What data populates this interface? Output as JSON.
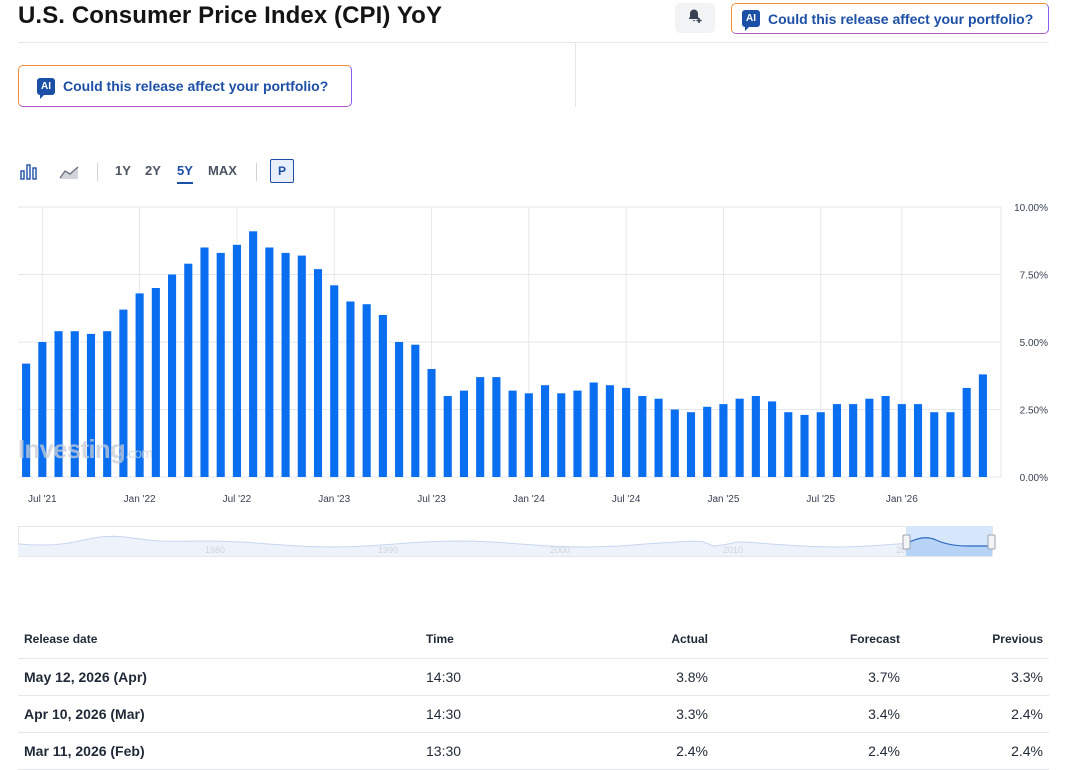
{
  "page": {
    "title": "U.S. Consumer Price Index (CPI) YoY"
  },
  "ai_prompt": {
    "label": "Could this release affect your portfolio?",
    "badge": "AI"
  },
  "toolbar": {
    "ranges": [
      "1Y",
      "2Y",
      "5Y",
      "MAX"
    ],
    "active_range": "5Y",
    "p_label": "P",
    "icons": [
      "bar-chart-icon",
      "area-chart-icon"
    ]
  },
  "colors": {
    "bar": "#0a6ef0",
    "accent": "#1c4fa6",
    "positive": "#0d8a3a",
    "negative": "#d32f2f"
  },
  "watermark": {
    "text": "Investing",
    "suffix": ".com"
  },
  "chart_data": {
    "type": "bar",
    "series": [
      {
        "values": [
          4.2,
          5.0,
          5.4,
          5.4,
          5.3,
          5.4,
          6.2,
          6.8,
          7.0,
          7.5,
          7.9,
          8.5,
          8.3,
          8.6,
          9.1,
          8.5,
          8.3,
          8.2,
          7.7,
          7.1,
          6.5,
          6.4,
          6.0,
          5.0,
          4.9,
          4.0,
          3.0,
          3.2,
          3.7,
          3.7,
          3.2,
          3.1,
          3.4,
          3.1,
          3.2,
          3.5,
          3.4,
          3.3,
          3.0,
          2.9,
          2.5,
          2.4,
          2.6,
          2.7,
          2.9,
          3.0,
          2.8,
          2.4,
          2.3,
          2.4,
          2.7,
          2.7,
          2.9,
          3.0,
          2.7,
          2.7,
          2.4,
          2.4,
          3.3,
          3.8
        ]
      }
    ],
    "x_labels": [
      "Jul '21",
      "Jan '22",
      "Jul '22",
      "Jan '23",
      "Jul '23",
      "Jan '24",
      "Jul '24",
      "Jan '25",
      "Jul '25",
      "Jan '26"
    ],
    "x_label_bar_index": [
      1,
      7,
      13,
      19,
      25,
      31,
      37,
      43,
      49,
      54
    ],
    "y_ticks": [
      "0.00%",
      "2.50%",
      "5.00%",
      "7.50%",
      "10.00%"
    ],
    "ylim": [
      0,
      10
    ],
    "grid": true
  },
  "navigator": {
    "labels": [
      "1980",
      "1990",
      "2000",
      "2010",
      "2020"
    ]
  },
  "table": {
    "headers": {
      "date": "Release date",
      "time": "Time",
      "actual": "Actual",
      "forecast": "Forecast",
      "previous": "Previous"
    },
    "rows": [
      {
        "date": "May 12, 2026 (Apr)",
        "time": "14:30",
        "actual": "3.8%",
        "actual_trend": "up",
        "forecast": "3.7%",
        "previous": "3.3%"
      },
      {
        "date": "Apr 10, 2026 (Mar)",
        "time": "14:30",
        "actual": "3.3%",
        "actual_trend": "down",
        "forecast": "3.4%",
        "previous": "2.4%"
      },
      {
        "date": "Mar 11, 2026 (Feb)",
        "time": "13:30",
        "actual": "2.4%",
        "actual_trend": "neutral",
        "forecast": "2.4%",
        "previous": "2.4%"
      }
    ]
  }
}
